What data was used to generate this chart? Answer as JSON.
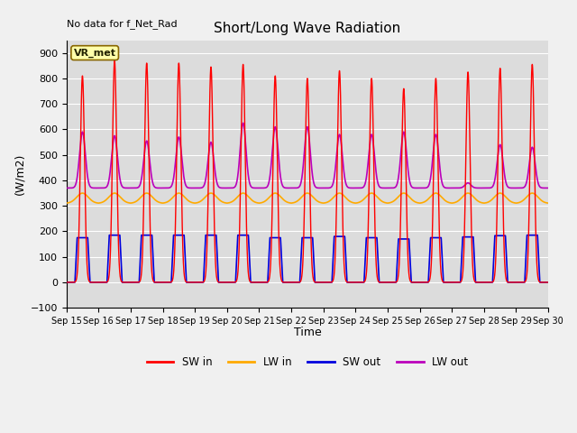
{
  "title": "Short/Long Wave Radiation",
  "xlabel": "Time",
  "ylabel": "(W/m2)",
  "ylim": [
    -100,
    950
  ],
  "yticks": [
    -100,
    0,
    100,
    200,
    300,
    400,
    500,
    600,
    700,
    800,
    900
  ],
  "note": "No data for f_Net_Rad",
  "station_label": "VR_met",
  "xticklabels": [
    "Sep 15",
    "Sep 16",
    "Sep 17",
    "Sep 18",
    "Sep 19",
    "Sep 20",
    "Sep 21",
    "Sep 22",
    "Sep 23",
    "Sep 24",
    "Sep 25",
    "Sep 26",
    "Sep 27",
    "Sep 28",
    "Sep 29",
    "Sep 30"
  ],
  "colors": {
    "SW_in": "#ff0000",
    "LW_in": "#ffaa00",
    "SW_out": "#0000dd",
    "LW_out": "#bb00bb"
  },
  "legend_labels": [
    "SW in",
    "LW in",
    "SW out",
    "LW out"
  ],
  "plot_bg": "#dcdcdc",
  "fig_bg": "#f0f0f0",
  "grid_color": "#ffffff",
  "sw_in_peaks": [
    810,
    870,
    860,
    860,
    845,
    855,
    810,
    800,
    830,
    800,
    760,
    800,
    825,
    840,
    855
  ],
  "sw_out_peaks": [
    175,
    185,
    185,
    185,
    185,
    185,
    175,
    175,
    180,
    175,
    170,
    175,
    178,
    183,
    185
  ],
  "lw_in_night": 310,
  "lw_in_day_bump": 40,
  "lw_out_night": 370,
  "lw_out_day_peaks": [
    590,
    575,
    555,
    570,
    550,
    625,
    610,
    610,
    580,
    580,
    590,
    580,
    390,
    540,
    530
  ]
}
